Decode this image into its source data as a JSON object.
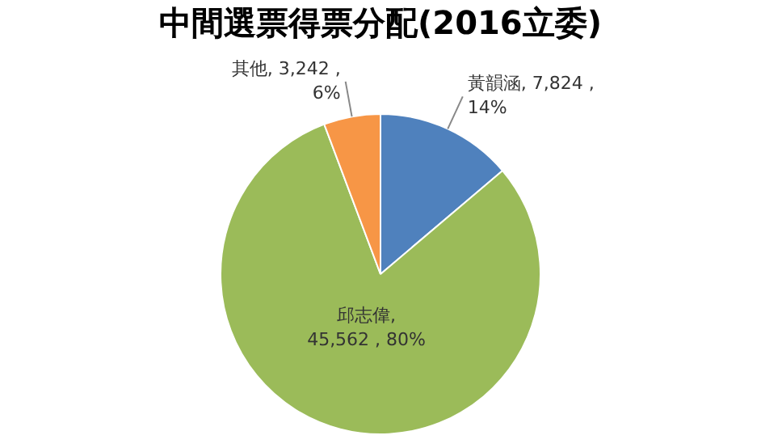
{
  "chart_data": {
    "type": "pie",
    "title": "中間選票得票分配(2016立委)",
    "categories": [
      "黃韻涵",
      "邱志偉",
      "其他"
    ],
    "values": [
      7824,
      45562,
      3242
    ],
    "colors": [
      "#4f81bd",
      "#9bbb59",
      "#f79646"
    ],
    "value_labels": [
      ", 7,824 ,\n14%",
      ",\n45,562 , 80%",
      ", 3,242 ,\n6%"
    ]
  }
}
